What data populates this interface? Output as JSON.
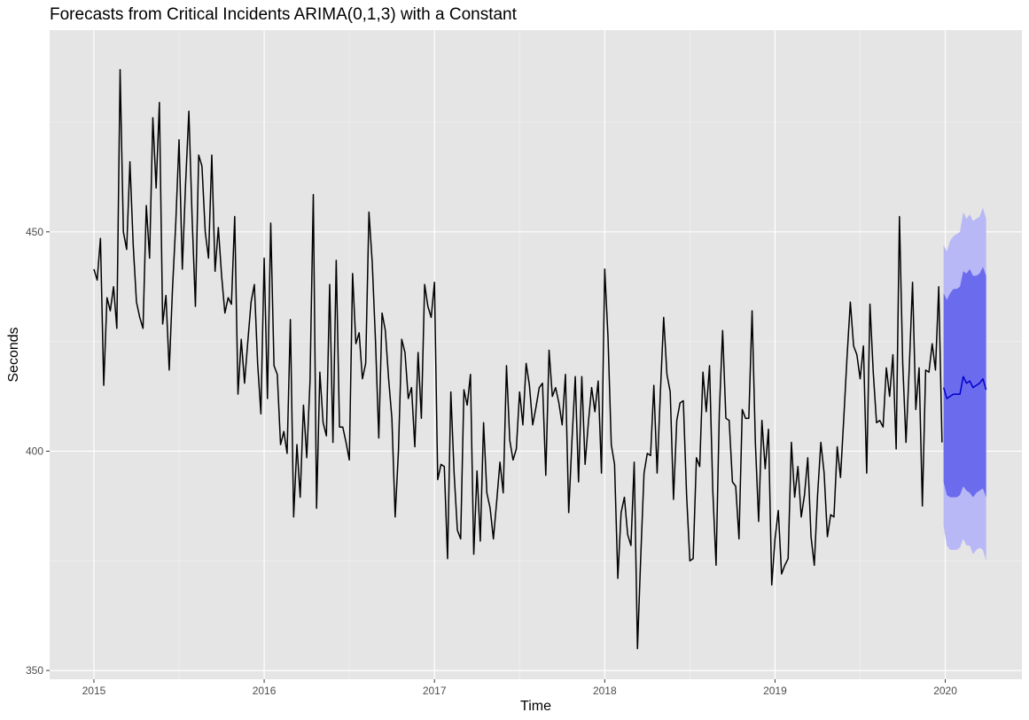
{
  "colors": {
    "panel_bg": "#e5e5e5",
    "grid_major": "#ffffff",
    "series_line": "#000000",
    "forecast_line": "#0000cc",
    "ci80_fill": "#6b6bee",
    "ci95_fill": "#b8b8f6",
    "tick_text": "#4d4d4d"
  },
  "chart_data": {
    "type": "line",
    "title": "Forecasts from Critical Incidents ARIMA(0,1,3) with a Constant",
    "xlabel": "Time",
    "ylabel": "Seconds",
    "xlim": [
      2014.74,
      2020.45
    ],
    "ylim": [
      348,
      496
    ],
    "x_ticks": [
      2015,
      2016,
      2017,
      2018,
      2019,
      2020
    ],
    "x_tick_labels": [
      "2015",
      "2016",
      "2017",
      "2018",
      "2019",
      "2020"
    ],
    "y_ticks": [
      350,
      400,
      450
    ],
    "y_tick_labels": [
      "350",
      "400",
      "450"
    ],
    "grid": true,
    "legend": "none",
    "series": [
      {
        "x_start": 2015.0,
        "x_step": 0.0192308,
        "values": [
          441.5,
          439,
          448.5,
          415,
          435,
          432,
          437.5,
          428,
          487,
          450,
          446,
          466,
          447,
          434,
          430.5,
          428,
          456,
          444,
          476,
          460,
          479.5,
          429,
          435.5,
          418.5,
          437,
          452,
          471,
          441.5,
          461,
          477.5,
          453,
          433,
          467.5,
          465,
          450,
          444,
          467.5,
          441,
          451,
          440,
          431.5,
          435,
          433.5,
          453.5,
          413,
          425.5,
          415.5,
          425,
          434,
          438,
          420,
          408.5,
          444,
          412,
          452,
          419.5,
          417.5,
          401.5,
          404.5,
          399.5,
          430,
          385,
          401.5,
          389.5,
          410.5,
          398.5,
          416,
          458.5,
          387,
          418,
          406.5,
          403.5,
          438,
          402,
          443.5,
          405.5,
          405.5,
          402,
          398,
          440.5,
          424.5,
          427,
          416.5,
          420,
          454.5,
          443,
          425,
          403,
          431.5,
          427.5,
          416.5,
          407.5,
          385,
          400,
          425.5,
          422.5,
          412,
          414.5,
          401,
          422.5,
          407.5,
          438,
          433,
          430.5,
          438.5,
          393.5,
          397,
          396.5,
          375.5,
          413.5,
          395,
          382,
          380,
          414,
          410.5,
          417.5,
          376.5,
          395.5,
          379.5,
          406.5,
          390.5,
          387,
          380,
          388.5,
          397.5,
          390.5,
          419.5,
          402.5,
          398,
          400.5,
          413.5,
          406,
          420,
          415,
          406,
          410,
          414.5,
          415.5,
          394.5,
          423,
          412.5,
          414.5,
          411,
          406,
          417.5,
          386,
          402.5,
          417,
          393,
          417,
          397,
          406.5,
          414.5,
          409,
          416,
          395,
          441.5,
          426,
          401.5,
          397,
          371,
          386,
          389.5,
          381,
          378.5,
          397.5,
          355,
          376,
          395,
          399.5,
          399,
          415,
          395,
          413.5,
          430.5,
          417.5,
          413.5,
          389,
          407,
          411,
          411.5,
          390,
          375,
          375.5,
          398.5,
          396.5,
          418,
          409,
          419.5,
          391,
          374,
          409,
          427.5,
          407.5,
          407,
          393,
          392,
          380,
          409.5,
          407.5,
          407.5,
          432,
          402,
          384,
          407,
          396,
          405,
          369.5,
          380,
          386.5,
          372,
          374,
          375.5,
          402,
          389.5,
          396.5,
          385,
          390,
          398.5,
          380.5,
          374,
          390,
          402,
          395,
          380.5,
          385.5,
          385,
          401,
          394,
          407.5,
          421.5,
          434,
          424,
          422,
          416.5,
          424,
          395,
          433.5,
          418,
          406.5,
          407,
          405.5,
          419,
          412.5,
          422,
          400.5,
          453.5,
          420,
          402,
          419,
          438.5,
          409.5,
          419,
          387.5,
          418.5,
          418,
          424.5,
          418.5,
          437.5,
          402
        ]
      },
      {
        "name_shown": false,
        "kind": "forecast",
        "x_start": 2019.99,
        "x_step": 0.0192308,
        "mean": [
          414.5,
          412,
          412.5,
          413,
          413,
          413,
          417,
          415.5,
          416,
          414.5,
          415,
          415.5,
          416.5,
          414
        ],
        "lo80": [
          393,
          390,
          389.5,
          389.5,
          389.5,
          390,
          392,
          391,
          390.5,
          389.5,
          390.5,
          391,
          391.5,
          389.5
        ],
        "hi80": [
          436,
          434.5,
          436,
          437,
          437,
          437.5,
          441,
          440.5,
          441.5,
          440,
          440,
          440.5,
          442,
          440
        ],
        "lo95": [
          383,
          378.5,
          377.5,
          377.5,
          377.5,
          378,
          380,
          378.5,
          378.5,
          376.5,
          377.5,
          378,
          377.5,
          375
        ],
        "hi95": [
          447,
          445.5,
          448,
          449,
          449.5,
          450,
          454.5,
          453,
          454,
          452.5,
          453,
          453.5,
          455.5,
          453
        ]
      }
    ]
  }
}
